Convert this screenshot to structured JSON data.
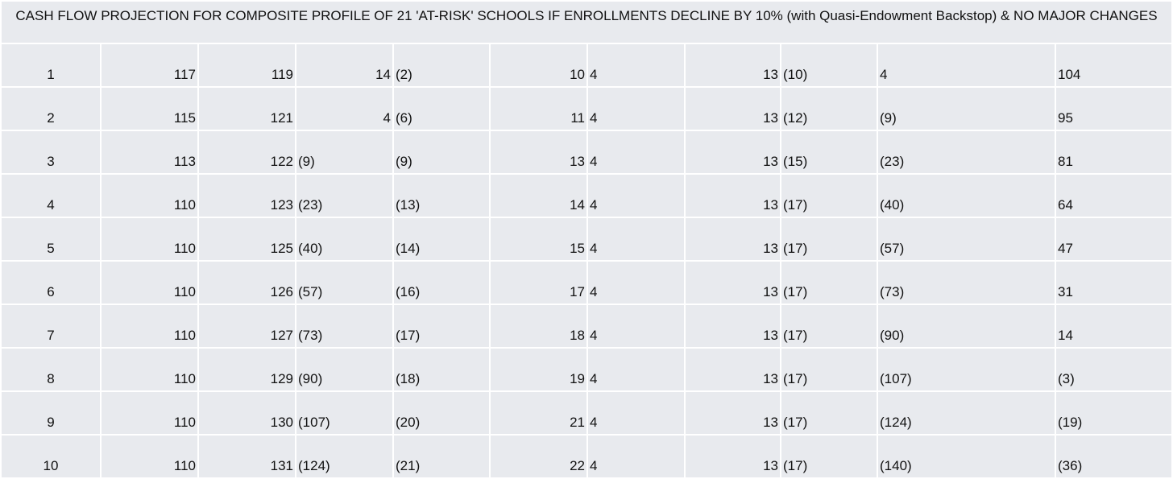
{
  "header": {
    "title": "CASH FLOW PROJECTION FOR COMPOSITE PROFILE OF 21 'AT-RISK' SCHOOLS IF ENROLLMENTS DECLINE BY 10% (with Quasi-Endowment Backstop) & NO MAJOR CHANGES"
  },
  "table": {
    "rows": [
      [
        1,
        117,
        119,
        14,
        "(2)",
        10,
        4,
        13,
        "(10)",
        4,
        104
      ],
      [
        2,
        115,
        121,
        4,
        "(6)",
        11,
        4,
        13,
        "(12)",
        "(9)",
        95
      ],
      [
        3,
        113,
        122,
        "(9)",
        "(9)",
        13,
        4,
        13,
        "(15)",
        "(23)",
        81
      ],
      [
        4,
        110,
        123,
        "(23)",
        "(13)",
        14,
        4,
        13,
        "(17)",
        "(40)",
        64
      ],
      [
        5,
        110,
        125,
        "(40)",
        "(14)",
        15,
        4,
        13,
        "(17)",
        "(57)",
        47
      ],
      [
        6,
        110,
        126,
        "(57)",
        "(16)",
        17,
        4,
        13,
        "(17)",
        "(73)",
        31
      ],
      [
        7,
        110,
        127,
        "(73)",
        "(17)",
        18,
        4,
        13,
        "(17)",
        "(90)",
        14
      ],
      [
        8,
        110,
        129,
        "(90)",
        "(18)",
        19,
        4,
        13,
        "(17)",
        "(107)",
        "(3)"
      ],
      [
        9,
        110,
        130,
        "(107)",
        "(20)",
        21,
        4,
        13,
        "(17)",
        "(124)",
        "(19)"
      ],
      [
        10,
        110,
        131,
        "(124)",
        "(21)",
        22,
        4,
        13,
        "(17)",
        "(140)",
        "(36)"
      ]
    ]
  }
}
